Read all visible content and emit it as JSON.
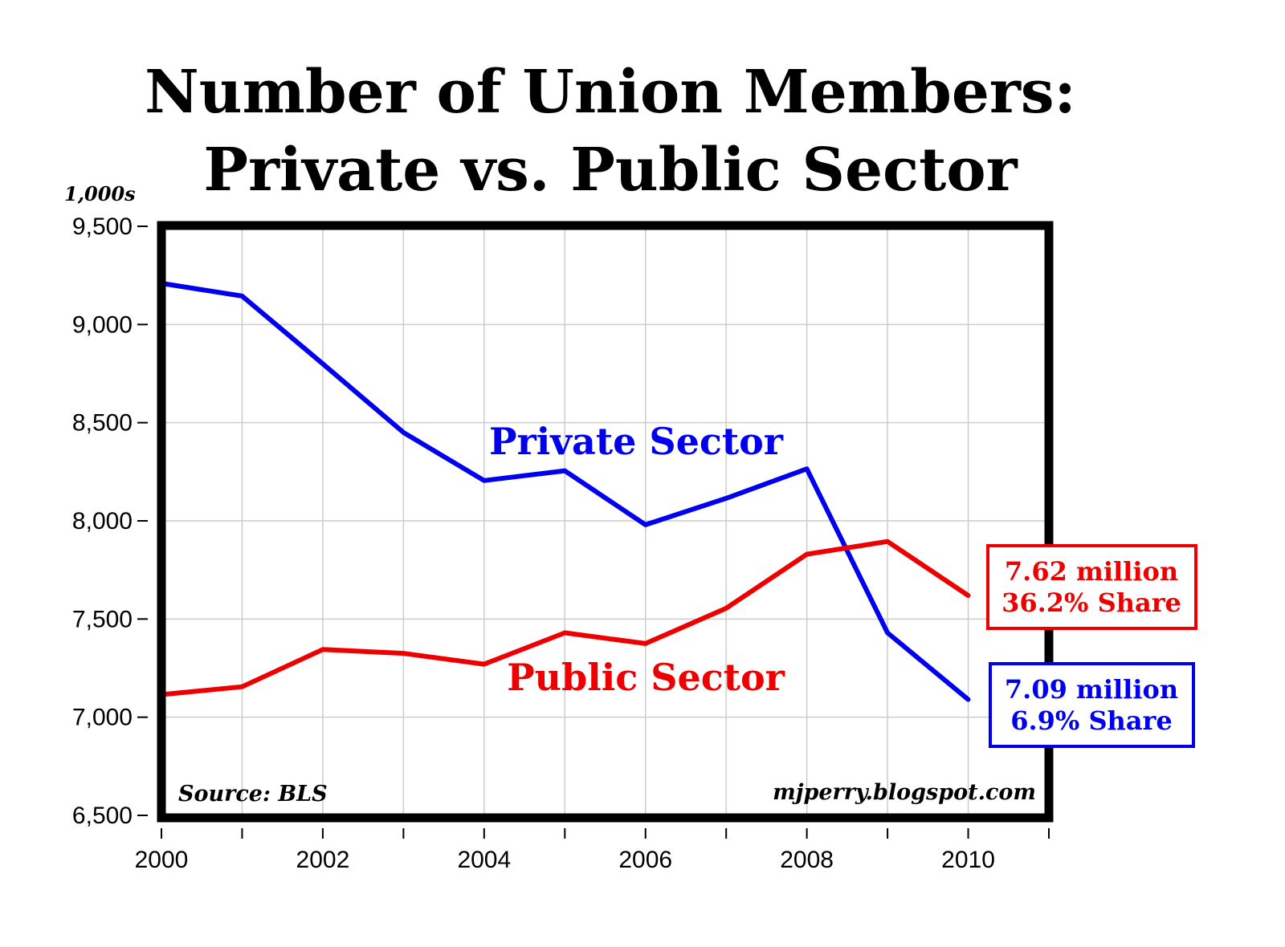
{
  "chart_data": {
    "type": "line",
    "title": "Number of Union Members:",
    "subtitle": "Private vs. Public Sector",
    "unit_label": "1,000s",
    "xlabel": "",
    "ylabel": "",
    "x": [
      2000,
      2001,
      2002,
      2003,
      2004,
      2005,
      2006,
      2007,
      2008,
      2009,
      2010
    ],
    "xlim": [
      2000,
      2011
    ],
    "ylim": [
      6500,
      9500
    ],
    "y_ticks": [
      {
        "value": 9500,
        "label": "9,500"
      },
      {
        "value": 9000,
        "label": "9,000"
      },
      {
        "value": 8500,
        "label": "8,500"
      },
      {
        "value": 8000,
        "label": "8,000"
      },
      {
        "value": 7500,
        "label": "7,500"
      },
      {
        "value": 7000,
        "label": "7,000"
      },
      {
        "value": 6500,
        "label": "6,500"
      }
    ],
    "x_ticks": [
      {
        "value": 2000,
        "label": "2000"
      },
      {
        "value": 2001,
        "label": ""
      },
      {
        "value": 2002,
        "label": "2002"
      },
      {
        "value": 2003,
        "label": ""
      },
      {
        "value": 2004,
        "label": "2004"
      },
      {
        "value": 2005,
        "label": ""
      },
      {
        "value": 2006,
        "label": "2006"
      },
      {
        "value": 2007,
        "label": ""
      },
      {
        "value": 2008,
        "label": "2008"
      },
      {
        "value": 2009,
        "label": ""
      },
      {
        "value": 2010,
        "label": "2010"
      },
      {
        "value": 2011,
        "label": ""
      }
    ],
    "grid": true,
    "series": [
      {
        "name": "Private Sector",
        "color": "#0000ee",
        "values": [
          9210,
          9145,
          8800,
          8450,
          8205,
          8255,
          7980,
          8115,
          8265,
          7430,
          7090
        ]
      },
      {
        "name": "Public Sector",
        "color": "#ee0000",
        "values": [
          7115,
          7155,
          7345,
          7325,
          7270,
          7430,
          7375,
          7555,
          7830,
          7895,
          7620
        ]
      }
    ],
    "annotations": {
      "private_box": {
        "line1": "7.09 million",
        "line2": "6.9% Share",
        "color": "#0000ee"
      },
      "public_box": {
        "line1": "7.62 million",
        "line2": "36.2% Share",
        "color": "#ee0000"
      },
      "source": "Source: BLS",
      "credit": "mjperry.blogspot.com"
    }
  }
}
